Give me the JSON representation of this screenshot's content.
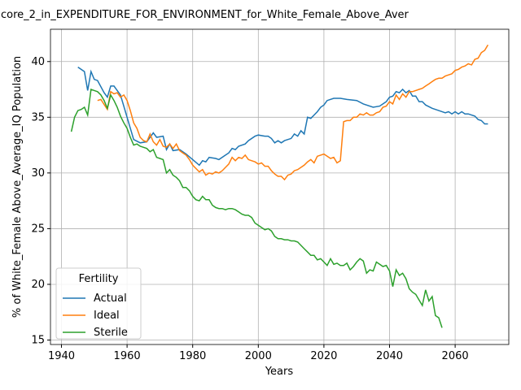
{
  "chart_data": {
    "type": "line",
    "title": "core_2_in_EXPENDITURE_FOR_ENVIRONMENT_for_White_Female_Above_Aver",
    "x_label": "Years",
    "y_label": "% of White_Female Above_Average_IQ Population",
    "legend_title": "Fertility",
    "legend_position": "lower left",
    "grid": true,
    "xlim": [
      1936.65,
      2076.35
    ],
    "xticks": [
      1940,
      1960,
      1980,
      2000,
      2020,
      2040,
      2060
    ],
    "ylim": [
      14.6,
      42.9
    ],
    "yticks": [
      15,
      20,
      25,
      30,
      35,
      40
    ],
    "series": [
      {
        "name": "Actual",
        "color": "#1f77b4",
        "x": [
          1945,
          1947,
          1948,
          1949,
          1950,
          1951,
          1953,
          1954,
          1955,
          1956,
          1958,
          1960,
          1962,
          1964,
          1966,
          1968,
          1969,
          1971,
          1972,
          1973,
          1974,
          1976,
          1978,
          1980,
          1982,
          1983,
          1984,
          1985,
          1987,
          1988,
          1990,
          1991,
          1992,
          1993,
          1994,
          1996,
          1997,
          1999,
          2000,
          2002,
          2003,
          2004,
          2005,
          2006,
          2007,
          2008,
          2010,
          2011,
          2012,
          2013,
          2014,
          2015,
          2016,
          2017,
          2018,
          2019,
          2020,
          2021,
          2023,
          2025,
          2027,
          2030,
          2032,
          2035,
          2037,
          2039,
          2040,
          2041,
          2042,
          2043,
          2044,
          2045,
          2046,
          2047,
          2048,
          2049,
          2050,
          2051,
          2053,
          2055,
          2057,
          2058,
          2059,
          2060,
          2061,
          2062,
          2063,
          2064,
          2066,
          2067,
          2068,
          2069,
          2070
        ],
        "values": [
          39.5,
          39.1,
          37.4,
          39.1,
          38.4,
          38.3,
          37.2,
          36.8,
          37.8,
          37.8,
          37.0,
          35.0,
          33.0,
          32.7,
          32.8,
          33.6,
          33.2,
          33.3,
          32.1,
          32.6,
          32.0,
          32.1,
          31.7,
          31.2,
          30.7,
          31.1,
          31.0,
          31.4,
          31.3,
          31.2,
          31.6,
          31.8,
          32.2,
          32.1,
          32.4,
          32.6,
          32.9,
          33.3,
          33.4,
          33.3,
          33.3,
          33.1,
          32.7,
          32.9,
          32.7,
          32.9,
          33.1,
          33.5,
          33.3,
          33.8,
          33.5,
          35.0,
          34.9,
          35.2,
          35.5,
          35.9,
          36.1,
          36.5,
          36.7,
          36.7,
          36.6,
          36.5,
          36.2,
          35.9,
          36.0,
          36.4,
          36.8,
          36.9,
          37.3,
          37.2,
          37.5,
          37.2,
          37.4,
          36.9,
          36.9,
          36.4,
          36.4,
          36.1,
          35.8,
          35.6,
          35.4,
          35.5,
          35.3,
          35.5,
          35.3,
          35.5,
          35.3,
          35.3,
          35.1,
          34.8,
          34.7,
          34.4,
          34.4
        ]
      },
      {
        "name": "Ideal",
        "color": "#ff7f0e",
        "x": [
          1951,
          1952,
          1954,
          1955,
          1956,
          1957,
          1958,
          1959,
          1960,
          1961,
          1962,
          1963,
          1964,
          1965,
          1966,
          1967,
          1968,
          1969,
          1970,
          1971,
          1972,
          1973,
          1974,
          1975,
          1976,
          1977,
          1978,
          1979,
          1980,
          1981,
          1982,
          1983,
          1984,
          1985,
          1986,
          1987,
          1988,
          1989,
          1990,
          1991,
          1992,
          1993,
          1994,
          1995,
          1996,
          1997,
          1998,
          1999,
          2000,
          2001,
          2002,
          2003,
          2004,
          2005,
          2006,
          2007,
          2008,
          2009,
          2010,
          2011,
          2012,
          2013,
          2014,
          2015,
          2016,
          2017,
          2018,
          2019,
          2020,
          2021,
          2022,
          2023,
          2024,
          2025,
          2026,
          2027,
          2028,
          2029,
          2030,
          2031,
          2032,
          2033,
          2034,
          2035,
          2036,
          2037,
          2038,
          2039,
          2040,
          2041,
          2042,
          2043,
          2044,
          2045,
          2046,
          2047,
          2048,
          2049,
          2050,
          2051,
          2052,
          2053,
          2054,
          2055,
          2056,
          2057,
          2058,
          2059,
          2060,
          2061,
          2062,
          2063,
          2064,
          2065,
          2066,
          2067,
          2068,
          2069,
          2070
        ],
        "values": [
          36.5,
          36.6,
          35.7,
          37.3,
          37.1,
          37.2,
          36.8,
          37.0,
          36.5,
          35.6,
          34.5,
          34.0,
          33.2,
          32.9,
          32.8,
          33.5,
          32.8,
          32.5,
          33.0,
          32.4,
          32.3,
          32.6,
          32.2,
          32.6,
          32.0,
          31.8,
          31.6,
          31.2,
          30.7,
          30.4,
          30.1,
          30.3,
          29.8,
          30.0,
          29.9,
          30.1,
          30.0,
          30.2,
          30.5,
          30.8,
          31.4,
          31.1,
          31.4,
          31.3,
          31.6,
          31.2,
          31.1,
          31.0,
          30.8,
          30.9,
          30.6,
          30.6,
          30.2,
          29.9,
          29.7,
          29.7,
          29.4,
          29.8,
          29.9,
          30.2,
          30.3,
          30.5,
          30.7,
          31.0,
          31.2,
          30.9,
          31.5,
          31.6,
          31.7,
          31.5,
          31.3,
          31.4,
          30.9,
          31.1,
          34.6,
          34.7,
          34.7,
          35.0,
          35.0,
          35.3,
          35.2,
          35.4,
          35.2,
          35.2,
          35.4,
          35.5,
          35.9,
          36.0,
          36.4,
          36.2,
          37.0,
          36.6,
          37.1,
          36.8,
          37.3,
          37.3,
          37.4,
          37.5,
          37.6,
          37.8,
          38.0,
          38.2,
          38.4,
          38.5,
          38.5,
          38.7,
          38.8,
          38.9,
          39.2,
          39.3,
          39.5,
          39.6,
          39.8,
          39.7,
          40.2,
          40.3,
          40.8,
          41.0,
          41.5
        ]
      },
      {
        "name": "Sterile",
        "color": "#2ca02c",
        "x": [
          1943,
          1944,
          1945,
          1946,
          1947,
          1948,
          1949,
          1950,
          1951,
          1952,
          1953,
          1954,
          1955,
          1956,
          1957,
          1958,
          1959,
          1960,
          1961,
          1962,
          1963,
          1964,
          1965,
          1966,
          1967,
          1968,
          1969,
          1970,
          1971,
          1972,
          1973,
          1974,
          1975,
          1976,
          1977,
          1978,
          1979,
          1980,
          1981,
          1982,
          1983,
          1984,
          1985,
          1986,
          1987,
          1988,
          1989,
          1990,
          1991,
          1992,
          1993,
          1994,
          1995,
          1996,
          1997,
          1998,
          1999,
          2000,
          2001,
          2002,
          2003,
          2004,
          2005,
          2006,
          2007,
          2008,
          2009,
          2010,
          2011,
          2012,
          2013,
          2014,
          2015,
          2016,
          2017,
          2018,
          2019,
          2020,
          2021,
          2022,
          2023,
          2024,
          2025,
          2026,
          2027,
          2028,
          2029,
          2030,
          2031,
          2032,
          2033,
          2034,
          2035,
          2036,
          2037,
          2038,
          2039,
          2040,
          2041,
          2042,
          2043,
          2044,
          2045,
          2046,
          2047,
          2048,
          2049,
          2050,
          2051,
          2052,
          2053,
          2054,
          2055,
          2056
        ],
        "values": [
          33.7,
          35.0,
          35.6,
          35.7,
          35.9,
          35.2,
          37.5,
          37.4,
          37.3,
          37.0,
          36.5,
          35.8,
          37.0,
          36.5,
          35.9,
          35.1,
          34.5,
          34.0,
          33.2,
          32.5,
          32.6,
          32.4,
          32.3,
          32.2,
          31.9,
          32.1,
          31.4,
          31.3,
          31.2,
          30.0,
          30.3,
          29.8,
          29.6,
          29.3,
          28.7,
          28.7,
          28.4,
          27.9,
          27.6,
          27.5,
          27.9,
          27.6,
          27.6,
          27.1,
          26.9,
          26.8,
          26.8,
          26.7,
          26.8,
          26.8,
          26.7,
          26.5,
          26.3,
          26.2,
          26.2,
          26.0,
          25.5,
          25.3,
          25.1,
          24.9,
          25.0,
          24.8,
          24.3,
          24.1,
          24.1,
          24.0,
          24.0,
          23.9,
          23.9,
          23.8,
          23.5,
          23.2,
          22.9,
          22.6,
          22.6,
          22.2,
          22.3,
          22.0,
          21.7,
          22.3,
          21.8,
          21.9,
          21.7,
          21.7,
          21.9,
          21.3,
          21.6,
          22.0,
          22.3,
          22.1,
          21.0,
          21.3,
          21.2,
          22.0,
          21.8,
          21.6,
          21.7,
          21.2,
          19.8,
          21.3,
          20.8,
          21.0,
          20.5,
          19.6,
          19.3,
          19.1,
          18.6,
          18.1,
          19.5,
          18.5,
          18.9,
          17.2,
          17.0,
          16.1
        ]
      }
    ]
  }
}
